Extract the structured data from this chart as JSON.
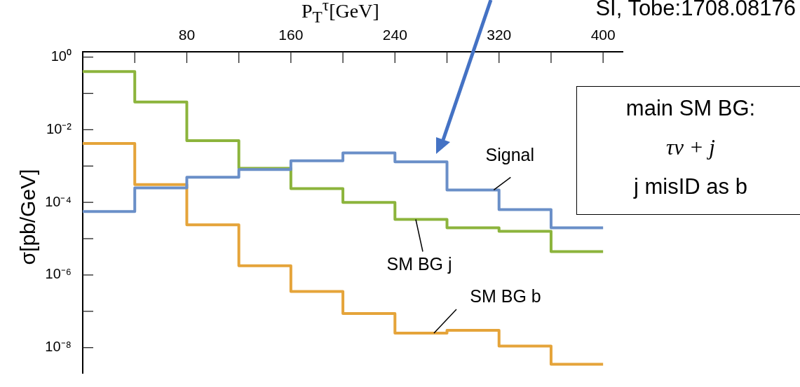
{
  "chart_data": {
    "type": "histogram",
    "xlabel": "P$_{T}$$^{τ}$[GeV]",
    "ylabel": "σ[pb/GeV]",
    "annotations": [
      "SI, Tobe:1708.08176",
      "main SM BG:",
      "τν + j",
      "j  misID as b"
    ],
    "bins": [
      0,
      40,
      80,
      120,
      160,
      200,
      240,
      280,
      320,
      360,
      400
    ],
    "series": [
      {
        "name": "Signal",
        "color": "#6a8fc8",
        "values": [
          5.6e-05,
          0.00025,
          0.00049,
          0.0008,
          0.0014,
          0.0023,
          0.0013,
          0.00022,
          6.3e-05,
          2e-05
        ]
      },
      {
        "name": "SM BG j",
        "color": "#8cb43c",
        "values": [
          0.4,
          0.058,
          0.005,
          0.00087,
          0.00024,
          0.0001,
          3.4e-05,
          2e-05,
          1.6e-05,
          4.4e-06
        ]
      },
      {
        "name": "SM BG b",
        "color": "#e5a43a",
        "values": [
          0.0042,
          0.00031,
          2.4e-05,
          1.8e-06,
          3.5e-07,
          8.7e-08,
          2.5e-08,
          3e-08,
          1.1e-08,
          3.5e-09
        ]
      }
    ],
    "log": "y",
    "xlim": [
      0,
      415
    ],
    "ylim": [
      2e-09,
      1.4
    ],
    "xticks": [
      {
        "value": 40,
        "label": null
      },
      80,
      {
        "value": 120,
        "label": null
      },
      160,
      {
        "value": 200,
        "label": null
      },
      240,
      {
        "value": 280,
        "label": null
      },
      320,
      {
        "value": 360,
        "label": null
      },
      400
    ],
    "yticks": [
      {
        "value": 1e-08,
        "label": "10⁻⁸"
      },
      {
        "value": 1e-07,
        "label": null
      },
      {
        "value": 1e-06,
        "label": "10⁻⁶"
      },
      {
        "value": 1e-05,
        "label": null
      },
      {
        "value": 0.0001,
        "label": "10⁻⁴"
      },
      {
        "value": 0.001,
        "label": null
      },
      {
        "value": 0.01,
        "label": "10⁻²"
      },
      {
        "value": 0.1,
        "label": null
      },
      {
        "value": 1,
        "label": "10⁰"
      }
    ],
    "grid": false,
    "legend": false,
    "line_style": "solid",
    "marker": "none"
  }
}
